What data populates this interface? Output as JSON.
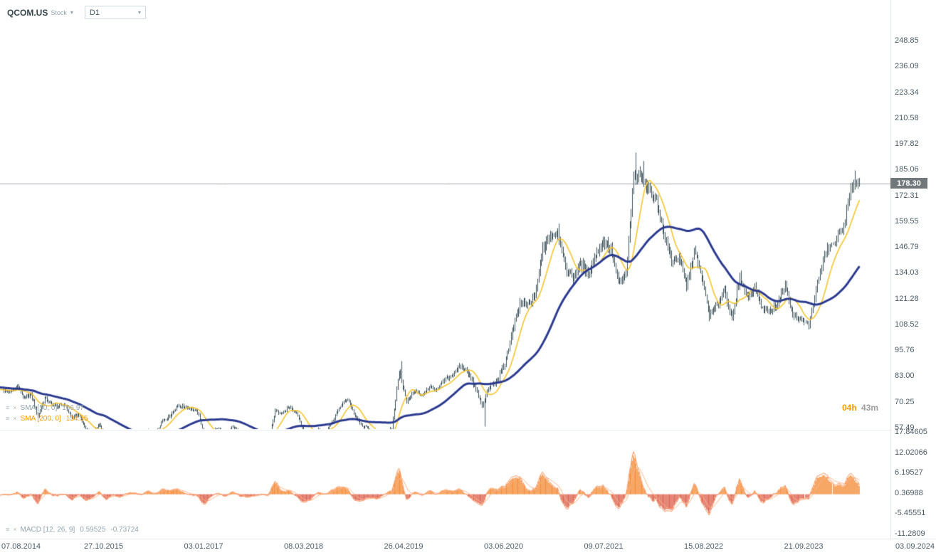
{
  "header": {
    "symbol": "QCOM.US",
    "instrument_type": "Stock",
    "timeframe": "D1"
  },
  "icons": {
    "caret_down": "▾",
    "legend_settings": "≡",
    "legend_remove": "×"
  },
  "timer": {
    "hours_left": "04h",
    "minutes_left": "43m"
  },
  "price_tag": "178.30",
  "legend": {
    "sma_fast": {
      "label": "SMA [50, 0]",
      "value": "166.97"
    },
    "sma_slow": {
      "label": "SMA [200, 0]",
      "value": "134.55"
    },
    "macd": {
      "label": "MACD [12, 26, 9]",
      "value_main": "0.59525",
      "value_signal": "-0.73724"
    }
  },
  "axes": {
    "price_labels": [
      "248.85",
      "236.09",
      "223.34",
      "210.58",
      "197.82",
      "185.06",
      "172.31",
      "159.55",
      "146.79",
      "134.03",
      "121.28",
      "108.52",
      "95.76",
      "83.00",
      "70.25",
      "57.49"
    ],
    "macd_labels": [
      "17.84605",
      "12.02066",
      "6.19527",
      "0.36988",
      "-5.45551",
      "-11.2809"
    ],
    "date_labels": [
      "07.08.2014",
      "27.10.2015",
      "03.01.2017",
      "08.03.2018",
      "26.04.2019",
      "03.06.2020",
      "09.07.2021",
      "15.08.2022",
      "21.09.2023",
      "03.09.2024"
    ]
  },
  "colors": {
    "candle": "#3c5059",
    "sma_fast": "#f5c42c",
    "sma_slow": "#2b3a8f",
    "macd_line": "#fa8e54",
    "macd_signal": "#fcb184",
    "macd_hist_pos": "#f28024",
    "macd_hist_neg": "#d9553f",
    "price_line": "#a0a6aa",
    "price_tag_bg": "#70787c",
    "axis_text": "#4a5a63",
    "legend_gray": "#93a5ae",
    "legend_orange": "#ff9800",
    "timer_orange": "#ff9800",
    "timer_gray": "#9e9e9e"
  },
  "chart_data": {
    "type": "candlestick",
    "symbol": "QCOM.US",
    "timeframe": "D1",
    "panes": [
      "price_with_sma_50_and_sma_200",
      "macd_12_26_9"
    ],
    "x_axis": {
      "start": "08.2014",
      "end_of_data": "03.2024",
      "end_of_axis": "09.2024",
      "interval": "monthly_closes"
    },
    "price_axis_range": [
      57.49,
      248.85
    ],
    "macd_axis_range": [
      -11.2809,
      17.84605
    ],
    "current_price": 178.3,
    "monthly_closes": [
      76,
      75,
      78,
      72,
      74,
      63,
      72,
      69,
      68,
      69,
      62,
      64,
      57,
      55,
      59,
      52,
      53,
      50,
      52,
      53,
      52,
      56,
      55,
      61,
      63,
      68,
      68,
      67,
      65,
      54,
      56,
      57,
      54,
      58,
      55,
      53,
      52,
      52,
      51,
      66,
      64,
      68,
      65,
      56,
      53,
      57,
      56,
      61,
      68,
      72,
      63,
      58,
      57,
      52,
      54,
      57,
      86,
      70,
      76,
      73,
      78,
      76,
      81,
      83,
      88,
      86,
      78,
      68,
      78,
      81,
      89,
      105,
      119,
      118,
      123,
      146,
      152,
      155,
      136,
      132,
      139,
      134,
      143,
      150,
      146,
      129,
      133,
      180,
      183,
      175,
      170,
      153,
      140,
      141,
      128,
      145,
      132,
      113,
      118,
      126,
      110,
      132,
      122,
      127,
      116,
      115,
      119,
      128,
      113,
      111,
      108,
      129,
      145,
      149,
      158,
      178.3
    ],
    "spikes": {
      "56": {
        "high": 90.4
      },
      "67": {
        "low": 58.0
      },
      "87": {
        "high": 193.5
      },
      "88": {
        "high": 189.3
      },
      "115": {
        "high": 184.6
      }
    },
    "indicators": [
      {
        "type": "SMA",
        "period": 50,
        "shift": 0,
        "last_value": 166.97
      },
      {
        "type": "SMA",
        "period": 200,
        "shift": 0,
        "last_value": 134.55
      },
      {
        "type": "MACD",
        "fast": 12,
        "slow": 26,
        "signal": 9,
        "last_macd": 0.59525,
        "last_signal": -0.73724,
        "pane": "bottom"
      }
    ]
  }
}
